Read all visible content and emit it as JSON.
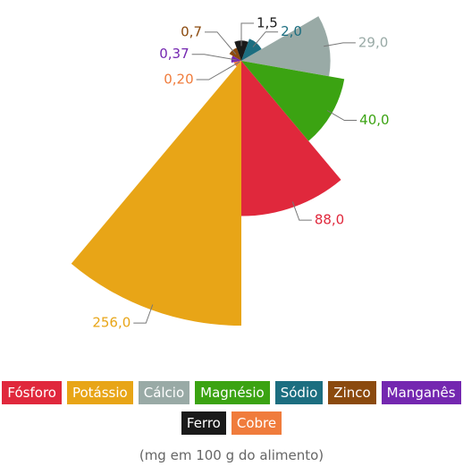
{
  "chart_data": {
    "type": "polar-area",
    "subtitle": "(mg em 100 g do alimento)",
    "categories": [
      "Fósforo",
      "Potássio",
      "Cálcio",
      "Magnésio",
      "Sódio",
      "Zinco",
      "Manganês",
      "Ferro",
      "Cobre"
    ],
    "values": [
      88.0,
      256.0,
      29.0,
      40.0,
      2.0,
      0.7,
      0.37,
      1.5,
      0.2
    ],
    "value_labels": [
      "88,0",
      "256,0",
      "29,0",
      "40,0",
      "2,0",
      "0,7",
      "0,37",
      "1,5",
      "0,20"
    ],
    "colors": [
      "#e0283c",
      "#e8a517",
      "#99aaa6",
      "#3ba312",
      "#1c6e80",
      "#8b4a0e",
      "#7427b0",
      "#1a1a1a",
      "#f07c3c"
    ]
  }
}
